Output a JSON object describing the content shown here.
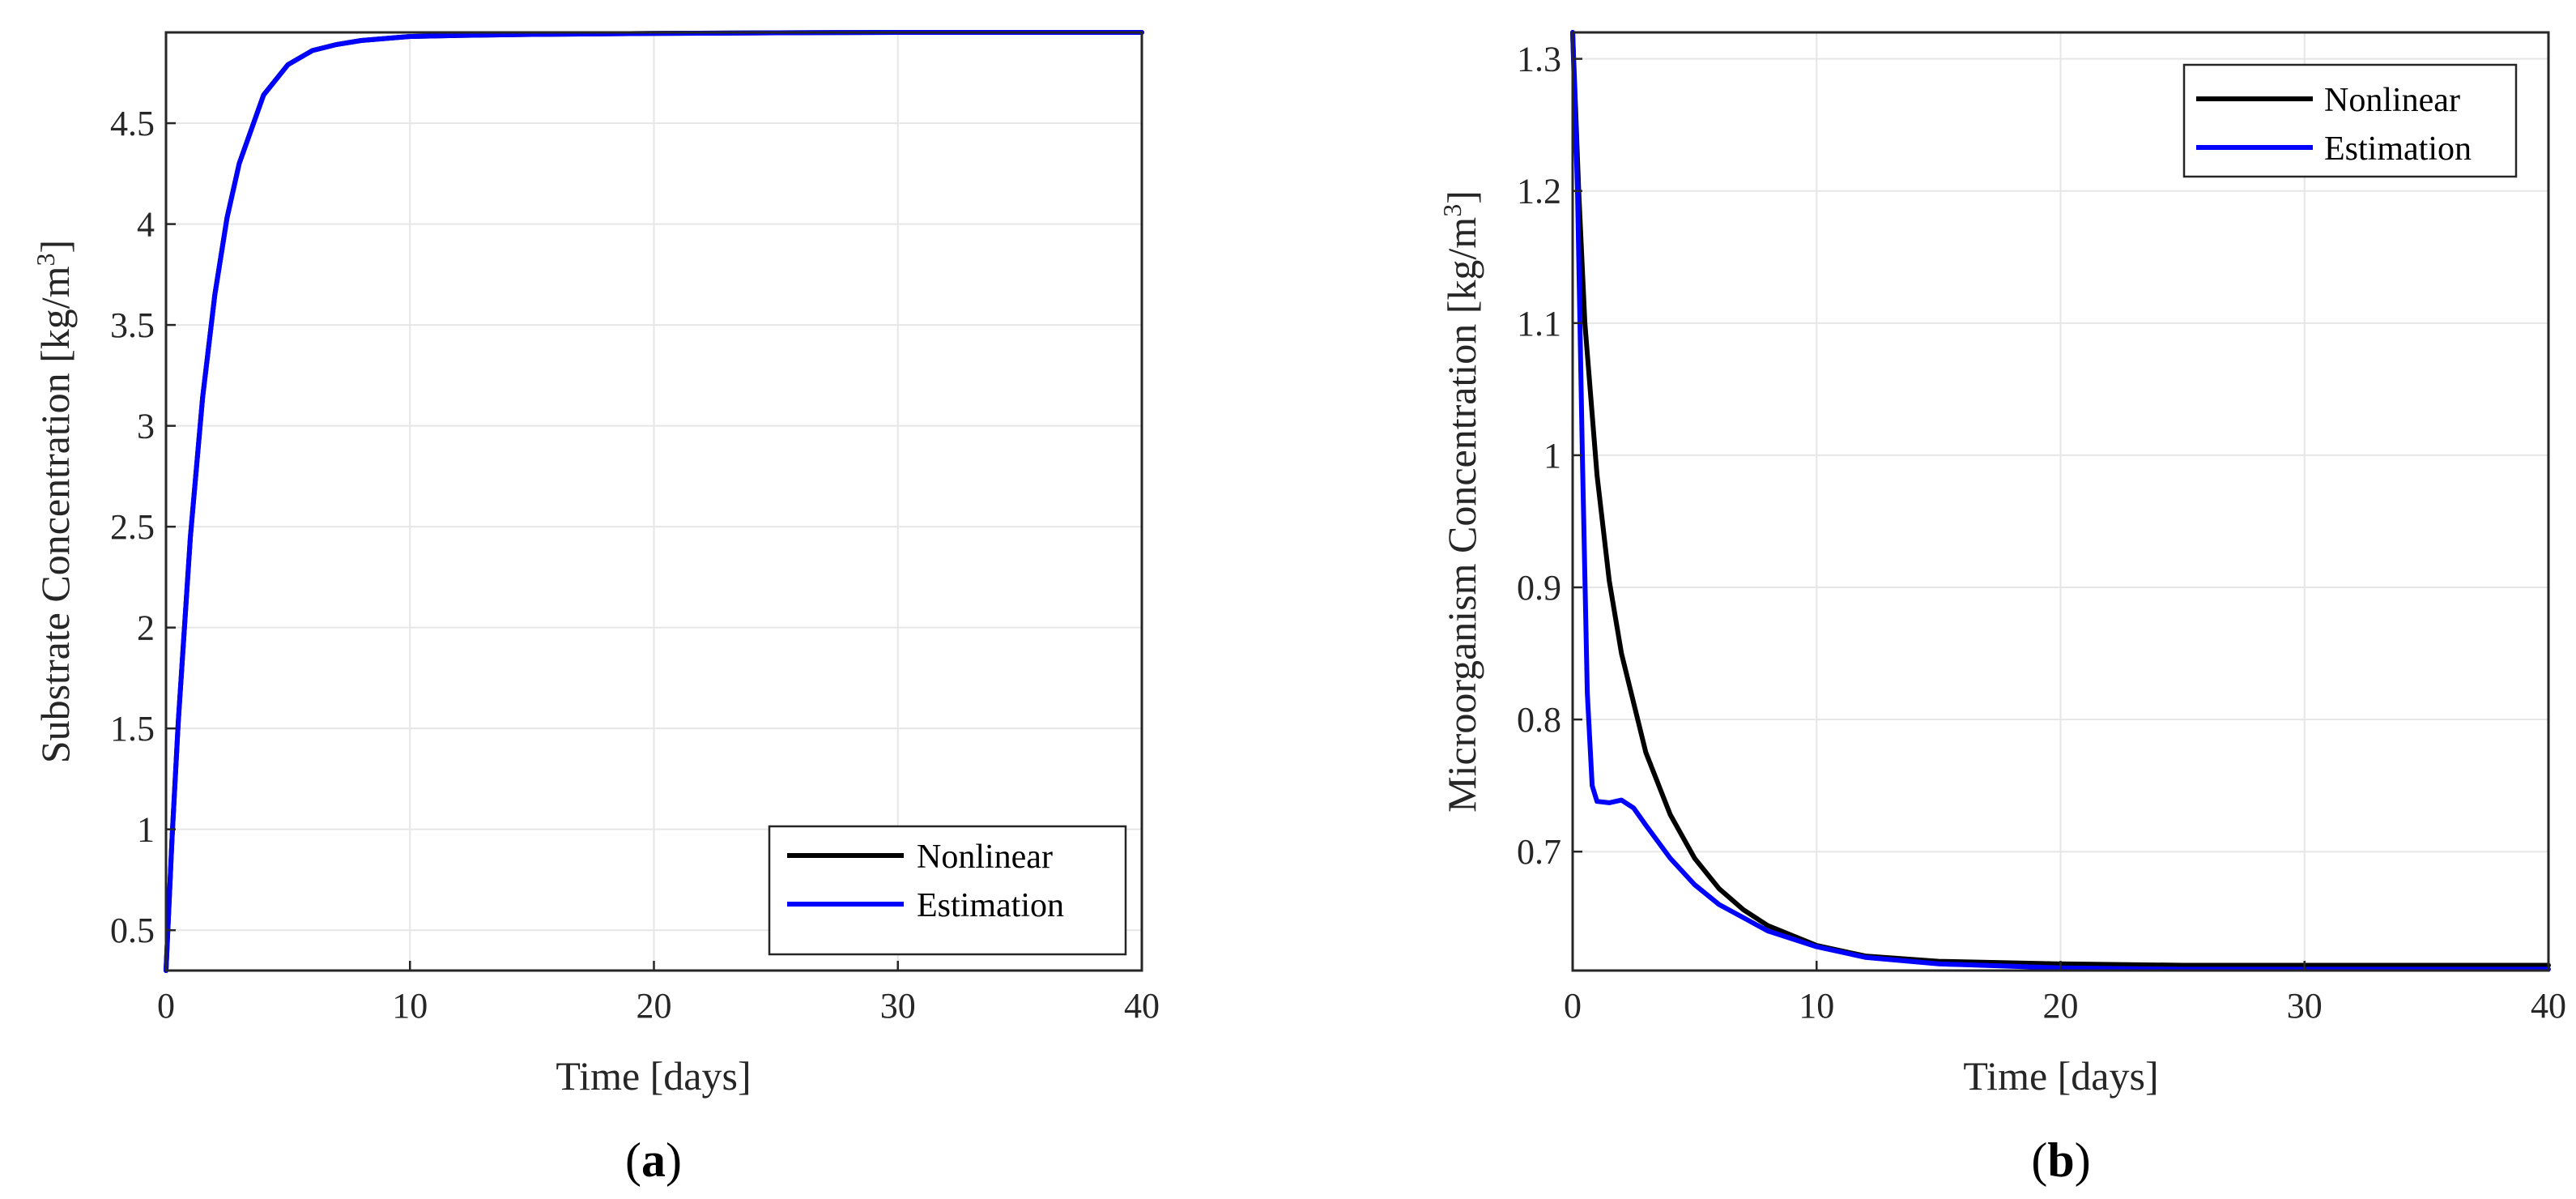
{
  "chart_data": [
    {
      "type": "line",
      "panel_label": {
        "open": "(",
        "letter": "a",
        "close": ")"
      },
      "xlabel": "Time [days]",
      "ylabel": "Substrate Concentration [kg/m³]",
      "ylabel_parts": {
        "pre": "Substrate Concentration [kg/m",
        "sup": "3",
        "post": "]"
      },
      "xlim": [
        0,
        40
      ],
      "ylim": [
        0.3,
        4.95
      ],
      "xticks": [
        0,
        10,
        20,
        30,
        40
      ],
      "yticks": [
        0.5,
        1,
        1.5,
        2,
        2.5,
        3,
        3.5,
        4,
        4.5
      ],
      "grid": true,
      "legend_position": "bottom-right",
      "series": [
        {
          "name": "Nonlinear",
          "color": "#000000",
          "x": [
            0,
            0.25,
            0.5,
            1,
            1.5,
            2,
            2.5,
            3,
            4,
            5,
            6,
            7,
            8,
            10,
            12,
            15,
            20,
            25,
            30,
            35,
            40
          ],
          "y": [
            0.3,
            0.96,
            1.53,
            2.45,
            3.14,
            3.65,
            4.03,
            4.3,
            4.64,
            4.79,
            4.86,
            4.89,
            4.91,
            4.93,
            4.935,
            4.94,
            4.945,
            4.948,
            4.95,
            4.95,
            4.95
          ]
        },
        {
          "name": "Estimation",
          "color": "#0000ff",
          "x": [
            0,
            0.25,
            0.5,
            1,
            1.5,
            2,
            2.5,
            3,
            4,
            5,
            6,
            7,
            8,
            10,
            12,
            15,
            20,
            25,
            30,
            35,
            40
          ],
          "y": [
            0.3,
            0.96,
            1.53,
            2.45,
            3.14,
            3.65,
            4.03,
            4.3,
            4.64,
            4.79,
            4.86,
            4.89,
            4.91,
            4.93,
            4.935,
            4.94,
            4.945,
            4.948,
            4.95,
            4.95,
            4.95
          ]
        }
      ]
    },
    {
      "type": "line",
      "panel_label": {
        "open": "(",
        "letter": "b",
        "close": ")"
      },
      "xlabel": "Time [days]",
      "ylabel": "Microorganism Concentration [kg/m³]",
      "ylabel_parts": {
        "pre": "Microorganism Concentration [kg/m",
        "sup": "3",
        "post": "]"
      },
      "xlim": [
        0,
        40
      ],
      "ylim": [
        0.61,
        1.32
      ],
      "xticks": [
        0,
        10,
        20,
        30,
        40
      ],
      "yticks": [
        0.7,
        0.8,
        0.9,
        1,
        1.1,
        1.2,
        1.3
      ],
      "grid": true,
      "legend_position": "top-right",
      "series": [
        {
          "name": "Nonlinear",
          "color": "#000000",
          "x": [
            0,
            0.25,
            0.5,
            1,
            1.5,
            2,
            3,
            4,
            5,
            6,
            7,
            8,
            10,
            12,
            15,
            20,
            25,
            30,
            35,
            40
          ],
          "y": [
            1.32,
            1.2,
            1.1,
            0.985,
            0.905,
            0.85,
            0.775,
            0.728,
            0.695,
            0.672,
            0.656,
            0.644,
            0.629,
            0.621,
            0.617,
            0.615,
            0.614,
            0.614,
            0.614,
            0.614
          ]
        },
        {
          "name": "Estimation",
          "color": "#0000ff",
          "x": [
            0,
            0.2,
            0.4,
            0.6,
            0.8,
            1,
            1.5,
            2,
            2.5,
            3,
            4,
            5,
            6,
            8,
            10,
            12,
            15,
            20,
            25,
            30,
            35,
            40
          ],
          "y": [
            1.32,
            1.2,
            1.0,
            0.82,
            0.75,
            0.738,
            0.737,
            0.739,
            0.733,
            0.72,
            0.695,
            0.675,
            0.66,
            0.64,
            0.628,
            0.62,
            0.615,
            0.612,
            0.611,
            0.611,
            0.611,
            0.611
          ]
        }
      ]
    }
  ],
  "colors": {
    "axes": "#262626",
    "grid": "#e6e6e6",
    "nonlinear": "#000000",
    "estimation": "#0000ff"
  }
}
